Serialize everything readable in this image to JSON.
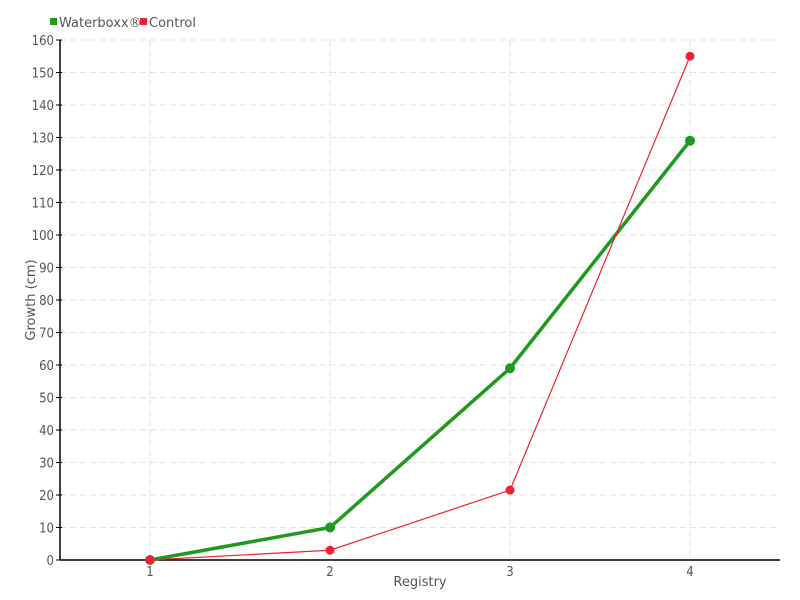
{
  "chart_data": {
    "type": "line",
    "title": "",
    "xlabel": "Registry",
    "ylabel": "Growth (cm)",
    "categories": [
      1,
      2,
      3,
      4
    ],
    "xlim": [
      0.5,
      4.5
    ],
    "ylim": [
      0,
      160
    ],
    "yticks": [
      0,
      10,
      20,
      30,
      40,
      50,
      60,
      70,
      80,
      90,
      100,
      110,
      120,
      130,
      140,
      150,
      160
    ],
    "grid": true,
    "legend_position": "top-left",
    "series": [
      {
        "name": "Waterboxx®",
        "color": "#1f9a1f",
        "values": [
          0,
          10,
          59,
          129
        ]
      },
      {
        "name": "Control",
        "color": "#ee2233",
        "values": [
          0,
          3,
          21.5,
          155
        ]
      }
    ]
  }
}
